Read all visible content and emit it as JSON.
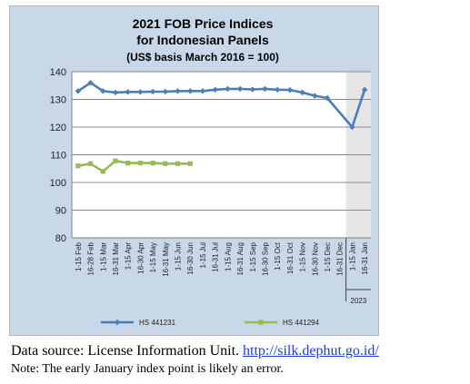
{
  "chart_data": {
    "type": "line",
    "title": [
      "2021 FOB Price Indices",
      "for Indonesian Panels",
      "(US$ basis March 2016 = 100)"
    ],
    "xlabel": "",
    "ylabel": "",
    "ylim": [
      80,
      140
    ],
    "yticks": [
      "80",
      "90",
      "100",
      "110",
      "120",
      "130",
      "140"
    ],
    "grid": true,
    "legend_position": "bottom",
    "categories": [
      "1-15 Feb",
      "16-28 Feb",
      "1-15 Mar",
      "16-31 Mar",
      "1-15 Apr",
      "16-30 Apr",
      "1-15 May",
      "16-31 May",
      "1-15 Jun",
      "16-30 Jun",
      "1-15 Jul",
      "16-31 Jul",
      "1-15 Aug",
      "16-31 Aug",
      "1-15 Sep",
      "16-30 Sep",
      "1-15 Oct",
      "16-31 Oct",
      "1-15 Nov",
      "16-30 Nov",
      "1-15 Dec",
      "16-31 Dec",
      "1-15 Jan",
      "16-31 Jan"
    ],
    "year_label": "2023",
    "series": [
      {
        "name": "HS 441231",
        "color": "#4a7ebb",
        "values": [
          133,
          136,
          133,
          132.5,
          132.7,
          132.7,
          132.8,
          132.8,
          133,
          133,
          133,
          133.5,
          133.8,
          133.8,
          133.6,
          133.8,
          133.5,
          133.4,
          132.5,
          131.3,
          130.5,
          null,
          120,
          133.5
        ]
      },
      {
        "name": "HS 441294",
        "color": "#98b954",
        "values": [
          106,
          106.8,
          104,
          107.8,
          107,
          107,
          107,
          106.8,
          106.8,
          106.8,
          null,
          null,
          null,
          null,
          null,
          null,
          null,
          null,
          null,
          null,
          null,
          null,
          null,
          null
        ]
      }
    ]
  },
  "caption": {
    "source_prefix": "Data source: License Information Unit.",
    "source_link": "http://silk.dephut.go.id/",
    "note": "Note: The early January index point is likely an error."
  }
}
